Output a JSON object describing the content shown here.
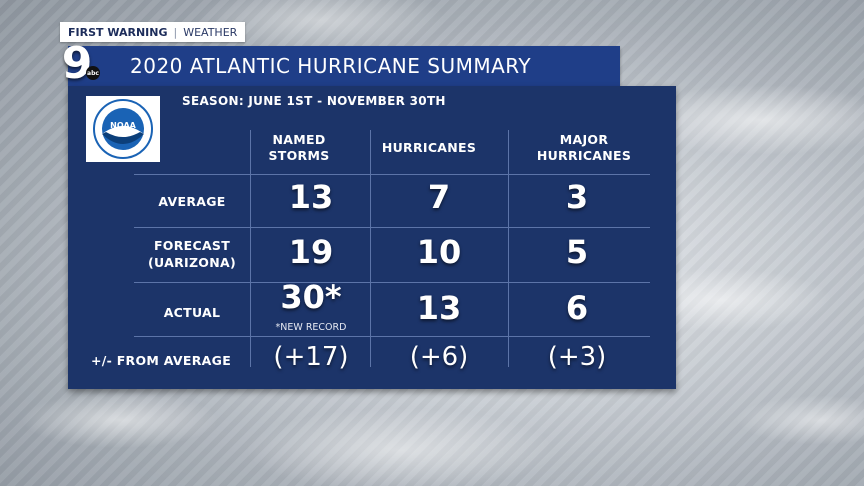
{
  "tag": {
    "left": "FIRST WARNING",
    "right": "WEATHER"
  },
  "station": {
    "channel": "9",
    "network": "abc"
  },
  "title": "2020 ATLANTIC HURRICANE SUMMARY",
  "noaa_text": "NOAA",
  "season": "SEASON: JUNE 1ST - NOVEMBER 30TH",
  "columns": [
    {
      "line1": "NAMED",
      "line2": "STORMS"
    },
    {
      "line1": "HURRICANES",
      "line2": ""
    },
    {
      "line1": "MAJOR",
      "line2": "HURRICANES"
    }
  ],
  "rows": [
    {
      "label1": "AVERAGE",
      "label2": "",
      "values": [
        "13",
        "7",
        "3"
      ]
    },
    {
      "label1": "FORECAST",
      "label2": "(UARIZONA)",
      "values": [
        "19",
        "10",
        "5"
      ]
    },
    {
      "label1": "ACTUAL",
      "label2": "",
      "values": [
        "30*",
        "13",
        "6"
      ]
    }
  ],
  "record_note": "*NEW RECORD",
  "deviation": {
    "label": "+/- FROM AVERAGE",
    "values": [
      "(+17)",
      "(+6)",
      "(+3)"
    ]
  },
  "colors": {
    "panel": "#1c3469",
    "title_bar": "#1f3e88",
    "noaa_blue": "#1a63b5"
  }
}
